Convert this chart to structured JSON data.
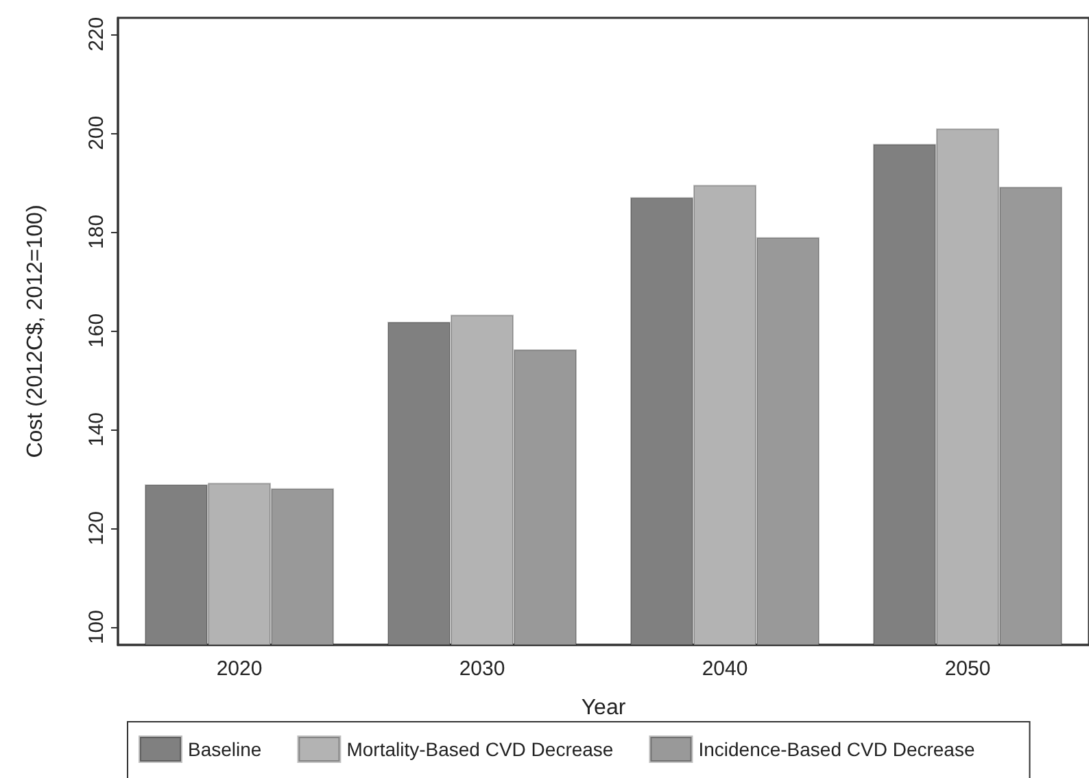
{
  "chart_data": {
    "type": "bar",
    "xlabel": "Year",
    "ylabel": "Cost (2012C$, 2012=100)",
    "categories": [
      "2020",
      "2030",
      "2040",
      "2050"
    ],
    "series": [
      {
        "name": "Baseline",
        "color": "#808080",
        "values": [
          128.9,
          161.8,
          187.0,
          197.8
        ]
      },
      {
        "name": "Mortality-Based CVD Decrease",
        "color": "#b3b3b3",
        "values": [
          129.2,
          163.2,
          189.5,
          200.9
        ]
      },
      {
        "name": "Incidence-Based CVD Decrease",
        "color": "#999999",
        "values": [
          128.1,
          156.2,
          178.9,
          189.1
        ]
      }
    ],
    "ylim": [
      96.4,
      223.3
    ],
    "yticks": [
      100,
      120,
      140,
      160,
      180,
      200,
      220
    ],
    "grid": false,
    "legend": "bottom"
  }
}
